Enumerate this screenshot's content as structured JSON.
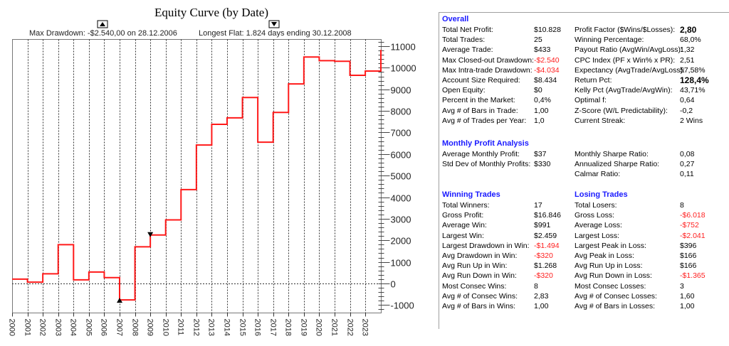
{
  "colors": {
    "equity_line": "#ff1a1a",
    "section_header": "#1a1aff",
    "negative": "#ff2020",
    "grid": "#333333"
  },
  "chart_data": {
    "type": "line",
    "title": "Equity Curve (by Date)",
    "annotations": {
      "max_drawdown": "Max Drawdown: -$2.540,00 on 28.12.2006",
      "longest_flat": "Longest Flat: 1.824 days ending 30.12.2008"
    },
    "xlabel": "",
    "ylabel": "",
    "x_tick_labels": [
      "2000",
      "2001",
      "2002",
      "2003",
      "2004",
      "2005",
      "2006",
      "2007",
      "2008",
      "2009",
      "2010",
      "2011",
      "2012",
      "2013",
      "2014",
      "2015",
      "2016",
      "2017",
      "2018",
      "2019",
      "2020",
      "2021",
      "2022",
      "2023"
    ],
    "y_tick_labels": [
      "11000",
      "10000",
      "9000",
      "8000",
      "7000",
      "6000",
      "5000",
      "4000",
      "3000",
      "2000",
      "1000",
      "0",
      "-1000"
    ],
    "y_ticks": [
      11000,
      10000,
      9000,
      8000,
      7000,
      6000,
      5000,
      4000,
      3000,
      2000,
      1000,
      0,
      -1000
    ],
    "ylim": [
      -1350,
      11350
    ],
    "xlim": [
      2000,
      2024.1
    ],
    "grid": {
      "vertical": true,
      "horizontal_zero_line": true
    },
    "step": true,
    "series": [
      {
        "name": "Equity",
        "x": [
          2000,
          2001,
          2002,
          2003,
          2004,
          2005,
          2006,
          2007,
          2008,
          2009,
          2010,
          2011,
          2012,
          2013,
          2014,
          2015,
          2016,
          2017,
          2018,
          2019,
          2020,
          2021,
          2022,
          2023,
          2024.1
        ],
        "values": [
          200,
          60,
          450,
          1800,
          170,
          530,
          270,
          -760,
          1700,
          2250,
          2950,
          4350,
          6420,
          7380,
          7680,
          8620,
          6550,
          7930,
          9250,
          10500,
          10330,
          10300,
          9650,
          9850,
          10828
        ]
      }
    ],
    "markers": [
      {
        "type": "max-drawdown",
        "x": 2007,
        "y": -760,
        "symbol": "up-triangle"
      },
      {
        "type": "longest-flat-end",
        "x": 2009,
        "y": 2250,
        "symbol": "down-triangle"
      }
    ]
  },
  "stats": {
    "overall": {
      "header": "Overall",
      "left": [
        {
          "label": "Total Net Profit:",
          "value": "$10.828"
        },
        {
          "label": "Total Trades:",
          "value": "25"
        },
        {
          "label": "Average Trade:",
          "value": "$433"
        },
        {
          "label": "Max Closed-out Drawdown:",
          "value": "-$2.540",
          "neg": true
        },
        {
          "label": "Max Intra-trade Drawdown:",
          "value": "-$4.034",
          "neg": true
        },
        {
          "label": "Account Size Required:",
          "value": "$8.434"
        },
        {
          "label": "Open Equity:",
          "value": "$0"
        },
        {
          "label": "Percent in the Market:",
          "value": "0,4%"
        },
        {
          "label": "Avg # of Bars in Trade:",
          "value": "1,00"
        },
        {
          "label": "Avg # of Trades per Year:",
          "value": "1,0"
        }
      ],
      "right": [
        {
          "label": "Profit Factor ($Wins/$Losses):",
          "value": "2,80",
          "bold": true
        },
        {
          "label": "Winning Percentage:",
          "value": "68,0%"
        },
        {
          "label": "Payout Ratio (AvgWin/AvgLoss):",
          "value": "1,32"
        },
        {
          "label": "CPC Index (PF x Win% x PR):",
          "value": "2,51"
        },
        {
          "label": "Expectancy (AvgTrade/AvgLoss):",
          "value": "57,58%"
        },
        {
          "label": "Return Pct:",
          "value": "128,4%",
          "bold": true
        },
        {
          "label": "Kelly Pct (AvgTrade/AvgWin):",
          "value": "43,71%"
        },
        {
          "label": "Optimal f:",
          "value": "0,64"
        },
        {
          "label": "Z-Score (W/L Predictability):",
          "value": "-0,2"
        },
        {
          "label": "Current Streak:",
          "value": "2 Wins"
        }
      ]
    },
    "monthly": {
      "header": "Monthly Profit Analysis",
      "left": [
        {
          "label": "Average Monthly Profit:",
          "value": "$37"
        },
        {
          "label": "Std Dev of Monthly Profits:",
          "value": "$330"
        }
      ],
      "right": [
        {
          "label": "Monthly Sharpe Ratio:",
          "value": "0,08"
        },
        {
          "label": "Annualized Sharpe Ratio:",
          "value": "0,27"
        },
        {
          "label": "Calmar Ratio:",
          "value": "0,11"
        }
      ]
    },
    "winning": {
      "header": "Winning Trades",
      "rows": [
        {
          "label": "Total Winners:",
          "value": "17"
        },
        {
          "label": "Gross Profit:",
          "value": "$16.846"
        },
        {
          "label": "Average Win:",
          "value": "$991"
        },
        {
          "label": "Largest Win:",
          "value": "$2.459"
        },
        {
          "label": "Largest Drawdown in Win:",
          "value": "-$1.494",
          "neg": true
        },
        {
          "label": "Avg Drawdown in Win:",
          "value": "-$320",
          "neg": true
        },
        {
          "label": "Avg Run Up in Win:",
          "value": "$1.268"
        },
        {
          "label": "Avg Run Down in Win:",
          "value": "-$320",
          "neg": true
        },
        {
          "label": "Most Consec Wins:",
          "value": "8"
        },
        {
          "label": "Avg # of Consec Wins:",
          "value": "2,83"
        },
        {
          "label": "Avg # of Bars in Wins:",
          "value": "1,00"
        }
      ]
    },
    "losing": {
      "header": "Losing Trades",
      "rows": [
        {
          "label": "Total Losers:",
          "value": "8"
        },
        {
          "label": "Gross Loss:",
          "value": "-$6.018",
          "neg": true
        },
        {
          "label": "Average Loss:",
          "value": "-$752",
          "neg": true
        },
        {
          "label": "Largest Loss:",
          "value": "-$2.041",
          "neg": true
        },
        {
          "label": "Largest Peak in Loss:",
          "value": "$396"
        },
        {
          "label": "Avg Peak in Loss:",
          "value": "$166"
        },
        {
          "label": "Avg Run Up in Loss:",
          "value": "$166"
        },
        {
          "label": "Avg Run Down in Loss:",
          "value": "-$1.365",
          "neg": true
        },
        {
          "label": "Most Consec Losses:",
          "value": "3"
        },
        {
          "label": "Avg # of Consec Losses:",
          "value": "1,60"
        },
        {
          "label": "Avg # of Bars in Losses:",
          "value": "1,00"
        }
      ]
    }
  }
}
